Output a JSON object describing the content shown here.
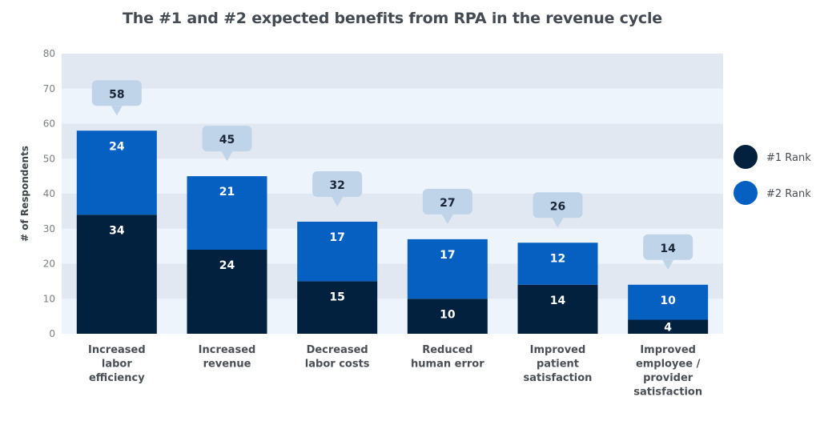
{
  "chart_data": {
    "type": "bar",
    "stacked": true,
    "title": "The #1 and #2 expected benefits from RPA in the revenue cycle",
    "xlabel": "",
    "ylabel": "# of Respondents",
    "ylim": [
      0,
      80
    ],
    "yticks": [
      0,
      10,
      20,
      30,
      40,
      50,
      60,
      70,
      80
    ],
    "grid": "alternating horizontal bands",
    "legend_position": "right",
    "categories": [
      [
        "Increased",
        "labor",
        "efficiency"
      ],
      [
        "Increased",
        "revenue"
      ],
      [
        "Decreased",
        "labor costs"
      ],
      [
        "Reduced",
        "human error"
      ],
      [
        "Improved",
        "patient",
        "satisfaction"
      ],
      [
        "Improved",
        "employee /",
        "provider",
        "satisfaction"
      ]
    ],
    "series": [
      {
        "name": "#1 Rank",
        "color": "#02213f",
        "values": [
          34,
          24,
          15,
          10,
          14,
          4
        ]
      },
      {
        "name": "#2 Rank",
        "color": "#0560c2",
        "values": [
          24,
          21,
          17,
          17,
          12,
          10
        ]
      }
    ],
    "totals": [
      58,
      45,
      32,
      27,
      26,
      14
    ],
    "colors": {
      "band_dark": "#e1e8f2",
      "band_light": "#eef4fc",
      "callout": "#bfd3e9"
    }
  }
}
